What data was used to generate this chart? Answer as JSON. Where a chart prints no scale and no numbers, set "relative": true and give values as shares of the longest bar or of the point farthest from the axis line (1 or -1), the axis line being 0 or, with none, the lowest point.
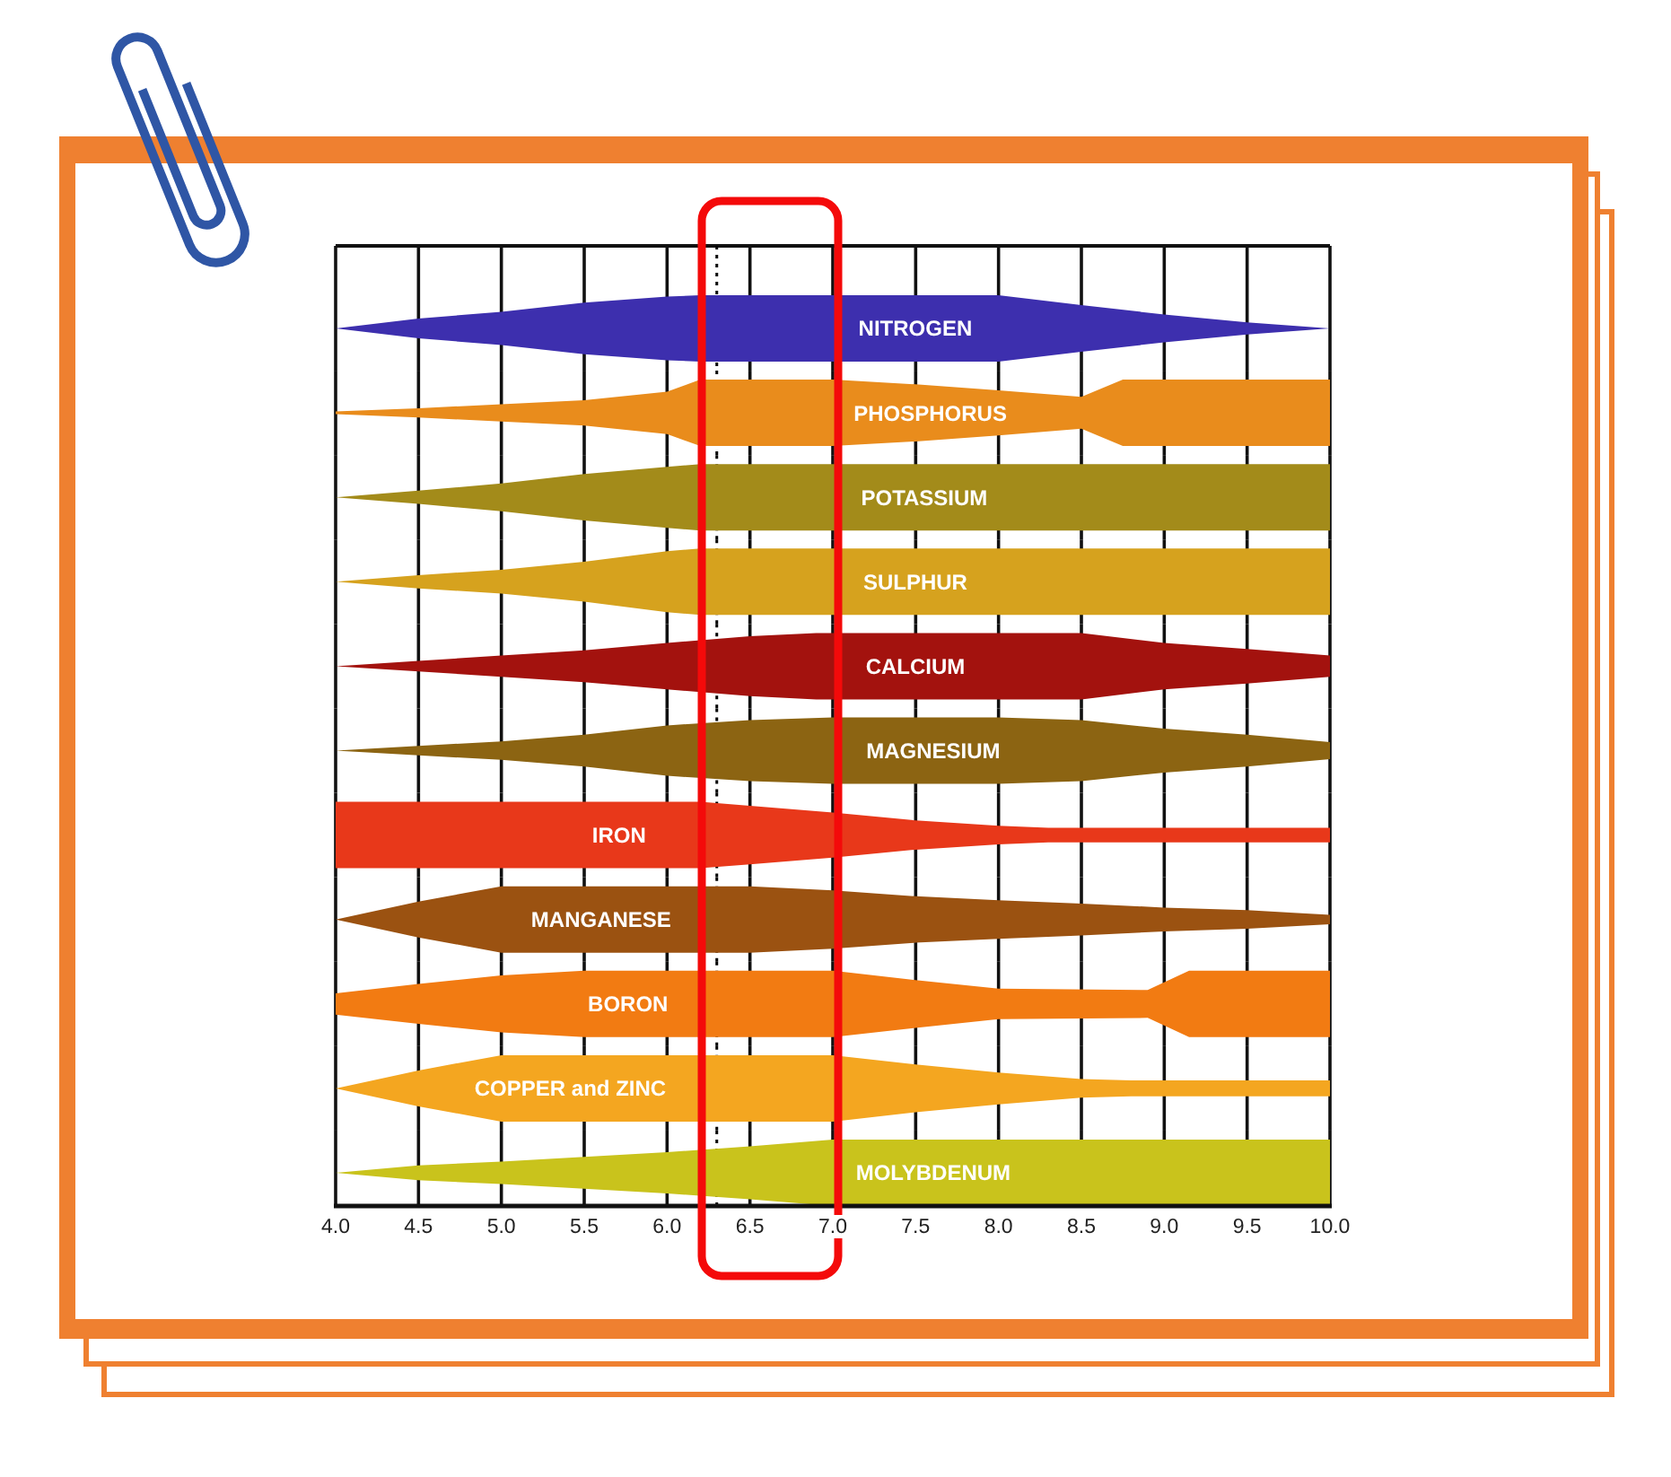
{
  "chart_data": [
    {
      "type": "area",
      "relative": true,
      "xlim": [
        4.0,
        10.0
      ],
      "xticks": [
        4,
        4.5,
        5,
        5.5,
        6,
        6.5,
        7,
        7.5,
        8,
        8.5,
        9,
        9.5,
        10
      ],
      "grid": "x",
      "tick_labels": false,
      "ref_lines": [
        {
          "axis": "x",
          "value": 6.3,
          "line_style": "dotted",
          "color": "#000000"
        }
      ],
      "series": [
        {
          "name": "NITROGEN",
          "color": "#3d2fae",
          "x": [
            4,
            4.5,
            5,
            5.5,
            6,
            6.2,
            8,
            8.5,
            9,
            9.5,
            10
          ],
          "values": [
            0.5,
            0.65,
            0.75,
            0.89,
            0.98,
            1,
            1,
            0.85,
            0.71,
            0.59,
            0.5
          ]
        }
      ]
    },
    {
      "type": "area",
      "relative": true,
      "xlim": [
        4.0,
        10.0
      ],
      "xticks": [
        4,
        4.5,
        5,
        5.5,
        6,
        6.5,
        7,
        7.5,
        8,
        8.5,
        9,
        9.5,
        10
      ],
      "grid": "x",
      "tick_labels": false,
      "ref_lines": [
        {
          "axis": "x",
          "value": 6.3,
          "line_style": "dotted",
          "color": "#000000"
        }
      ],
      "series": [
        {
          "name": "PHOSPHORUS",
          "color": "#e98c1c",
          "x": [
            4,
            4.5,
            5,
            5.5,
            6,
            6.2,
            7,
            7.5,
            8,
            8.5,
            8.75,
            10
          ],
          "values": [
            0.52,
            0.57,
            0.63,
            0.69,
            0.82,
            1,
            1,
            0.93,
            0.84,
            0.74,
            1,
            1
          ]
        }
      ]
    },
    {
      "type": "area",
      "relative": true,
      "xlim": [
        4.0,
        10.0
      ],
      "xticks": [
        4,
        4.5,
        5,
        5.5,
        6,
        6.5,
        7,
        7.5,
        8,
        8.5,
        9,
        9.5,
        10
      ],
      "grid": "x",
      "tick_labels": false,
      "ref_lines": [
        {
          "axis": "x",
          "value": 6.3,
          "line_style": "dotted",
          "color": "#000000"
        }
      ],
      "series": [
        {
          "name": "POTASSIUM",
          "color": "#a38b1a",
          "x": [
            4,
            4.5,
            5,
            5.5,
            6,
            6.2,
            10
          ],
          "values": [
            0.5,
            0.6,
            0.71,
            0.85,
            0.96,
            1,
            1
          ]
        }
      ]
    },
    {
      "type": "area",
      "relative": true,
      "xlim": [
        4.0,
        10.0
      ],
      "xticks": [
        4,
        4.5,
        5,
        5.5,
        6,
        6.5,
        7,
        7.5,
        8,
        8.5,
        9,
        9.5,
        10
      ],
      "grid": "x",
      "tick_labels": false,
      "ref_lines": [
        {
          "axis": "x",
          "value": 6.3,
          "line_style": "dotted",
          "color": "#000000"
        }
      ],
      "series": [
        {
          "name": "SULPHUR",
          "color": "#d6a21e",
          "x": [
            4,
            4.5,
            5,
            5.5,
            6,
            6.2,
            10
          ],
          "values": [
            0.5,
            0.6,
            0.68,
            0.8,
            0.96,
            1,
            1
          ]
        }
      ]
    },
    {
      "type": "area",
      "relative": true,
      "xlim": [
        4.0,
        10.0
      ],
      "xticks": [
        4,
        4.5,
        5,
        5.5,
        6,
        6.5,
        7,
        7.5,
        8,
        8.5,
        9,
        9.5,
        10
      ],
      "grid": "x",
      "tick_labels": false,
      "ref_lines": [
        {
          "axis": "x",
          "value": 6.3,
          "line_style": "dotted",
          "color": "#000000"
        }
      ],
      "series": [
        {
          "name": "CALCIUM",
          "color": "#a3120e",
          "x": [
            4,
            4.5,
            5,
            5.5,
            6,
            6.5,
            6.9,
            8.5,
            9,
            9.5,
            10
          ],
          "values": [
            0.5,
            0.58,
            0.66,
            0.74,
            0.85,
            0.95,
            1,
            1,
            0.85,
            0.76,
            0.66
          ]
        }
      ]
    },
    {
      "type": "area",
      "relative": true,
      "xlim": [
        4.0,
        10.0
      ],
      "xticks": [
        4,
        4.5,
        5,
        5.5,
        6,
        6.5,
        7,
        7.5,
        8,
        8.5,
        9,
        9.5,
        10
      ],
      "grid": "x",
      "tick_labels": false,
      "ref_lines": [
        {
          "axis": "x",
          "value": 6.3,
          "line_style": "dotted",
          "color": "#000000"
        }
      ],
      "series": [
        {
          "name": "MAGNESIUM",
          "color": "#8c6412",
          "x": [
            4,
            4.5,
            5,
            5.5,
            6,
            6.5,
            7,
            8,
            8.5,
            9,
            9.5,
            10
          ],
          "values": [
            0.5,
            0.57,
            0.64,
            0.74,
            0.88,
            0.96,
            1,
            1,
            0.96,
            0.83,
            0.74,
            0.63
          ]
        }
      ]
    },
    {
      "type": "area",
      "relative": true,
      "xlim": [
        4.0,
        10.0
      ],
      "xticks": [
        4,
        4.5,
        5,
        5.5,
        6,
        6.5,
        7,
        7.5,
        8,
        8.5,
        9,
        9.5,
        10
      ],
      "grid": "x",
      "tick_labels": false,
      "ref_lines": [
        {
          "axis": "x",
          "value": 6.3,
          "line_style": "dotted",
          "color": "#000000"
        }
      ],
      "series": [
        {
          "name": "IRON",
          "color": "#e8381a",
          "x": [
            4,
            6.2,
            6.5,
            7,
            7.5,
            8,
            8.3,
            10
          ],
          "values": [
            1,
            1,
            0.94,
            0.84,
            0.72,
            0.64,
            0.61,
            0.61
          ]
        }
      ]
    },
    {
      "type": "area",
      "relative": true,
      "xlim": [
        4.0,
        10.0
      ],
      "xticks": [
        4,
        4.5,
        5,
        5.5,
        6,
        6.5,
        7,
        7.5,
        8,
        8.5,
        9,
        9.5,
        10
      ],
      "grid": "x",
      "tick_labels": false,
      "ref_lines": [
        {
          "axis": "x",
          "value": 6.3,
          "line_style": "dotted",
          "color": "#000000"
        }
      ],
      "series": [
        {
          "name": "MANGANESE",
          "color": "#9b5211",
          "x": [
            4,
            4.5,
            5,
            6.5,
            7,
            7.5,
            8,
            8.5,
            9,
            9.5,
            10
          ],
          "values": [
            0.5,
            0.77,
            1,
            1,
            0.94,
            0.85,
            0.79,
            0.74,
            0.68,
            0.64,
            0.57
          ]
        }
      ]
    },
    {
      "type": "area",
      "relative": true,
      "xlim": [
        4.0,
        10.0
      ],
      "xticks": [
        4,
        4.5,
        5,
        5.5,
        6,
        6.5,
        7,
        7.5,
        8,
        8.5,
        9,
        9.5,
        10
      ],
      "grid": "x",
      "tick_labels": false,
      "ref_lines": [
        {
          "axis": "x",
          "value": 6.3,
          "line_style": "dotted",
          "color": "#000000"
        }
      ],
      "series": [
        {
          "name": "BORON",
          "color": "#f27b12",
          "x": [
            4,
            4.5,
            5,
            5.5,
            7,
            7.5,
            8,
            8.9,
            9.15,
            10
          ],
          "values": [
            0.66,
            0.8,
            0.93,
            1,
            1,
            0.86,
            0.73,
            0.71,
            1,
            1
          ]
        }
      ]
    },
    {
      "type": "area",
      "relative": true,
      "xlim": [
        4.0,
        10.0
      ],
      "xticks": [
        4,
        4.5,
        5,
        5.5,
        6,
        6.5,
        7,
        7.5,
        8,
        8.5,
        9,
        9.5,
        10
      ],
      "grid": "x",
      "tick_labels": false,
      "ref_lines": [
        {
          "axis": "x",
          "value": 6.3,
          "line_style": "dotted",
          "color": "#000000"
        }
      ],
      "series": [
        {
          "name": "COPPER and ZINC",
          "color": "#f4a620",
          "x": [
            4,
            4.5,
            5,
            7,
            7.5,
            8,
            8.5,
            8.8,
            10
          ],
          "values": [
            0.5,
            0.77,
            1,
            1,
            0.86,
            0.74,
            0.64,
            0.62,
            0.62
          ]
        }
      ]
    },
    {
      "type": "area",
      "relative": true,
      "xlim": [
        4.0,
        10.0
      ],
      "xticks": [
        {
          "value": 4,
          "label": "4.0"
        },
        4.5,
        {
          "value": 5,
          "label": "5.0"
        },
        5.5,
        {
          "value": 6,
          "label": "6.0"
        },
        6.5,
        {
          "value": 7,
          "label": "7.0"
        },
        7.5,
        {
          "value": 8,
          "label": "8.0"
        },
        8.5,
        {
          "value": 9,
          "label": "9.0"
        },
        9.5,
        {
          "value": 10,
          "label": "10.0"
        }
      ],
      "grid": "x",
      "tick_labels": "x",
      "ref_lines": [
        {
          "axis": "x",
          "value": 6.3,
          "line_style": "dotted",
          "color": "#000000"
        }
      ],
      "series": [
        {
          "name": "MOLYBDENUM",
          "color": "#c9c31c",
          "x": [
            4,
            4.5,
            5,
            5.5,
            6,
            6.5,
            7,
            10
          ],
          "values": [
            0.5,
            0.61,
            0.67,
            0.74,
            0.81,
            0.9,
            1,
            1
          ]
        }
      ]
    }
  ]
}
